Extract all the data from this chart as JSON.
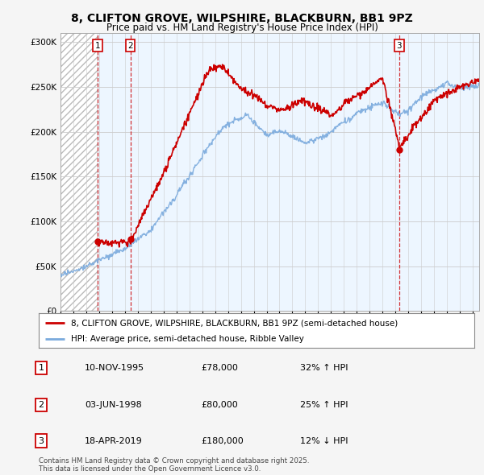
{
  "title": "8, CLIFTON GROVE, WILPSHIRE, BLACKBURN, BB1 9PZ",
  "subtitle": "Price paid vs. HM Land Registry's House Price Index (HPI)",
  "sale_dates_float": [
    1995.86,
    1998.42,
    2019.29
  ],
  "sale_prices": [
    78000,
    80000,
    180000
  ],
  "sale_labels": [
    "1",
    "2",
    "3"
  ],
  "legend_line1": "8, CLIFTON GROVE, WILPSHIRE, BLACKBURN, BB1 9PZ (semi-detached house)",
  "legend_line2": "HPI: Average price, semi-detached house, Ribble Valley",
  "price_color": "#cc0000",
  "hpi_color": "#7aaadd",
  "shade_color": "#ddeeff",
  "ylim": [
    0,
    310000
  ],
  "yticks": [
    0,
    50000,
    100000,
    150000,
    200000,
    250000,
    300000
  ],
  "ytick_labels": [
    "£0",
    "£50K",
    "£100K",
    "£150K",
    "£200K",
    "£250K",
    "£300K"
  ],
  "xmin": 1993.0,
  "xmax": 2025.5,
  "table_data": [
    [
      "1",
      "10-NOV-1995",
      "£78,000",
      "32% ↑ HPI"
    ],
    [
      "2",
      "03-JUN-1998",
      "£80,000",
      "25% ↑ HPI"
    ],
    [
      "3",
      "18-APR-2019",
      "£180,000",
      "12% ↓ HPI"
    ]
  ],
  "footnote": "Contains HM Land Registry data © Crown copyright and database right 2025.\nThis data is licensed under the Open Government Licence v3.0.",
  "background_color": "#f5f5f5"
}
